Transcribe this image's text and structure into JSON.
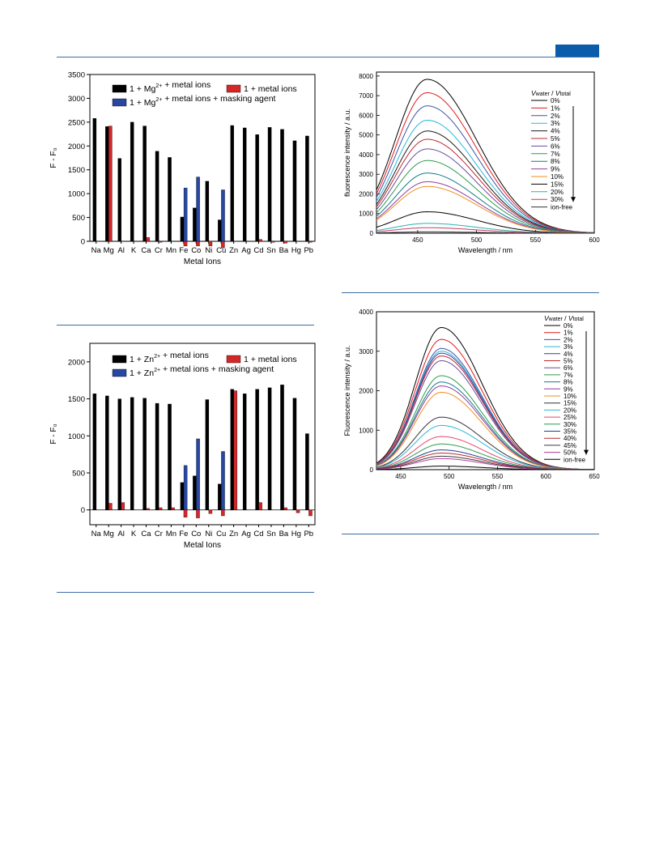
{
  "theme": {
    "rule_color": "#3d6fa3",
    "tab_color": "#0b5cab"
  },
  "chart_data": [
    {
      "type": "bar",
      "ylabel": "F - F₀",
      "xlabel": "Metal Ions",
      "ylim": [
        0,
        3500
      ],
      "yticks": [
        0,
        500,
        1000,
        1500,
        2000,
        2500,
        3000,
        3500
      ],
      "legend_placement": "top",
      "categories": [
        "Na",
        "Mg",
        "Al",
        "K",
        "Ca",
        "Cr",
        "Mn",
        "Fe",
        "Co",
        "Ni",
        "Cu",
        "Zn",
        "Ag",
        "Cd",
        "Sn",
        "Ba",
        "Hg",
        "Pb"
      ],
      "series": [
        {
          "name": "1 + Mg²⁺ + metal ions",
          "color": "#000000",
          "values": [
            2580,
            2410,
            1740,
            2500,
            2420,
            1890,
            1760,
            510,
            700,
            1260,
            450,
            2430,
            2380,
            2240,
            2390,
            2350,
            2110,
            2210
          ]
        },
        {
          "name": "1 + metal ions",
          "color": "#d62728",
          "values": [
            0,
            2420,
            0,
            0,
            80,
            -20,
            0,
            -100,
            -100,
            -100,
            -140,
            0,
            0,
            40,
            -20,
            -40,
            0,
            -20
          ]
        },
        {
          "name": "1 + Mg²⁺ + metal ions + masking agent",
          "color": "#2747a0",
          "values": [
            null,
            null,
            null,
            null,
            null,
            null,
            null,
            1120,
            1350,
            null,
            1080,
            null,
            null,
            null,
            null,
            null,
            null,
            null
          ]
        }
      ]
    },
    {
      "type": "bar",
      "ylabel": "F - F₀",
      "xlabel": "Metal Ions",
      "ylim": [
        -200,
        2250
      ],
      "yticks": [
        0,
        500,
        1000,
        1500,
        2000
      ],
      "legend_placement": "top",
      "categories": [
        "Na",
        "Mg",
        "Al",
        "K",
        "Ca",
        "Cr",
        "Mn",
        "Fe",
        "Co",
        "Ni",
        "Cu",
        "Zn",
        "Ag",
        "Cd",
        "Sn",
        "Ba",
        "Hg",
        "Pb"
      ],
      "series": [
        {
          "name": "1 + Zn²⁺ + metal ions",
          "color": "#000000",
          "values": [
            1570,
            1540,
            1500,
            1520,
            1510,
            1440,
            1430,
            370,
            460,
            1490,
            350,
            1630,
            1570,
            1630,
            1650,
            1690,
            1510,
            1030
          ]
        },
        {
          "name": "1 + metal ions",
          "color": "#d62728",
          "values": [
            0,
            90,
            100,
            0,
            20,
            30,
            30,
            -100,
            -110,
            -50,
            -80,
            1610,
            0,
            100,
            0,
            30,
            -40,
            -80
          ]
        },
        {
          "name": "1 + Zn²⁺ + metal ions + masking agent",
          "color": "#2747a0",
          "values": [
            null,
            null,
            null,
            null,
            null,
            null,
            null,
            600,
            960,
            null,
            790,
            null,
            null,
            null,
            null,
            null,
            null,
            null
          ]
        }
      ]
    },
    {
      "type": "line",
      "xlabel": "Wavelength / nm",
      "ylabel": "fluorescence intensity / a.u.",
      "xlim": [
        415,
        600
      ],
      "ylim": [
        0,
        8200
      ],
      "xticks": [
        450,
        500,
        550,
        600
      ],
      "yticks": [
        0,
        1000,
        2000,
        3000,
        4000,
        5000,
        6000,
        7000,
        8000
      ],
      "peak_wavelength": 458,
      "legend_title": {
        "v1": "V",
        "s1": "water",
        "mid": " / ",
        "v2": "V",
        "s2": "total"
      },
      "legend_placement": "top-right",
      "series": [
        {
          "name": "0%",
          "color": "#000000",
          "peak": 7830
        },
        {
          "name": "1%",
          "color": "#e41a1c",
          "peak": 7150
        },
        {
          "name": "2%",
          "color": "#3a55a5",
          "peak": 6480
        },
        {
          "name": "3%",
          "color": "#2bb7d9",
          "peak": 5750
        },
        {
          "name": "4%",
          "color": "#1a1a1a",
          "peak": 5200
        },
        {
          "name": "5%",
          "color": "#c1272d",
          "peak": 4780
        },
        {
          "name": "6%",
          "color": "#6a4ca0",
          "peak": 4290
        },
        {
          "name": "7%",
          "color": "#2e9c4a",
          "peak": 3700
        },
        {
          "name": "8%",
          "color": "#157a8a",
          "peak": 3060
        },
        {
          "name": "9%",
          "color": "#8f3fa0",
          "peak": 2620
        },
        {
          "name": "10%",
          "color": "#f28e1c",
          "peak": 2380
        },
        {
          "name": "15%",
          "color": "#000000",
          "peak": 1090
        },
        {
          "name": "20%",
          "color": "#28b2b2",
          "peak": 500
        },
        {
          "name": "30%",
          "color": "#c73a64",
          "peak": 280
        },
        {
          "name": "ion-free",
          "color": "#333333",
          "peak": 70
        }
      ]
    },
    {
      "type": "line",
      "xlabel": "Wavelength / nm",
      "ylabel": "Fluorescence intensity / a.u.",
      "xlim": [
        425,
        650
      ],
      "ylim": [
        0,
        4000
      ],
      "xticks": [
        450,
        500,
        550,
        600,
        650
      ],
      "yticks": [
        0,
        1000,
        2000,
        3000,
        4000
      ],
      "peak_wavelength": 492,
      "legend_title": {
        "v1": "V",
        "s1": "water",
        "mid": " / ",
        "v2": "V",
        "s2": "total"
      },
      "legend_placement": "top-right",
      "series": [
        {
          "name": "0%",
          "color": "#000000",
          "peak": 3600
        },
        {
          "name": "1%",
          "color": "#e41a1c",
          "peak": 3300
        },
        {
          "name": "2%",
          "color": "#3a55a5",
          "peak": 3070
        },
        {
          "name": "3%",
          "color": "#2bb7d9",
          "peak": 3000
        },
        {
          "name": "4%",
          "color": "#3b3b9b",
          "peak": 2950
        },
        {
          "name": "5%",
          "color": "#c1272d",
          "peak": 2880
        },
        {
          "name": "6%",
          "color": "#6a4ca0",
          "peak": 2760
        },
        {
          "name": "7%",
          "color": "#2e9c4a",
          "peak": 2380
        },
        {
          "name": "8%",
          "color": "#157a8a",
          "peak": 2220
        },
        {
          "name": "9%",
          "color": "#8f3fa0",
          "peak": 2120
        },
        {
          "name": "10%",
          "color": "#f28e1c",
          "peak": 1960
        },
        {
          "name": "15%",
          "color": "#333333",
          "peak": 1330
        },
        {
          "name": "20%",
          "color": "#2bb7d9",
          "peak": 1120
        },
        {
          "name": "25%",
          "color": "#e8476a",
          "peak": 840
        },
        {
          "name": "30%",
          "color": "#2e9c4a",
          "peak": 650
        },
        {
          "name": "35%",
          "color": "#1e3f8f",
          "peak": 500
        },
        {
          "name": "40%",
          "color": "#c1272d",
          "peak": 420
        },
        {
          "name": "45%",
          "color": "#3c3c3c",
          "peak": 340
        },
        {
          "name": "50%",
          "color": "#b23a9c",
          "peak": 280
        },
        {
          "name": "ion-free",
          "color": "#000000",
          "peak": 90
        }
      ]
    }
  ]
}
